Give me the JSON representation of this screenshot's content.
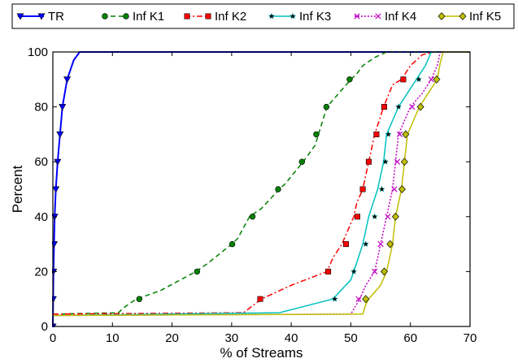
{
  "chart_data": {
    "type": "line",
    "title": "",
    "xlabel": "% of Streams",
    "ylabel": "Percent",
    "xlim": [
      0,
      70
    ],
    "ylim": [
      0,
      100
    ],
    "xticks": [
      0,
      10,
      20,
      30,
      40,
      50,
      60,
      70
    ],
    "yticks": [
      0,
      20,
      40,
      60,
      80,
      100
    ],
    "grid": false,
    "legend_placement": "top, above plot",
    "series": [
      {
        "name": "TR",
        "color": "#0000ff",
        "linestyle": "solid",
        "marker": "triangle-down",
        "points": [
          [
            0,
            0
          ],
          [
            0.05,
            10
          ],
          [
            0.1,
            20
          ],
          [
            0.2,
            30
          ],
          [
            0.3,
            40
          ],
          [
            0.5,
            50
          ],
          [
            0.8,
            60
          ],
          [
            1.2,
            70
          ],
          [
            1.6,
            80
          ],
          [
            2.4,
            90
          ],
          [
            3.5,
            97
          ],
          [
            4.5,
            100
          ],
          [
            70,
            100
          ]
        ],
        "marker_points": [
          [
            0,
            0
          ],
          [
            0.05,
            10
          ],
          [
            0.1,
            20
          ],
          [
            0.2,
            30
          ],
          [
            0.3,
            40
          ],
          [
            0.5,
            50
          ],
          [
            0.8,
            60
          ],
          [
            1.2,
            70
          ],
          [
            1.6,
            80
          ],
          [
            2.4,
            90
          ]
        ]
      },
      {
        "name": "Inf K1",
        "color": "#008000",
        "linestyle": "dashed",
        "marker": "circle",
        "points": [
          [
            0,
            4.5
          ],
          [
            11,
            5
          ],
          [
            12,
            7
          ],
          [
            14,
            10
          ],
          [
            18,
            13
          ],
          [
            24,
            20
          ],
          [
            26,
            23
          ],
          [
            30,
            30
          ],
          [
            31,
            32
          ],
          [
            33,
            40
          ],
          [
            35,
            43
          ],
          [
            38,
            50
          ],
          [
            39,
            52
          ],
          [
            42,
            60
          ],
          [
            44,
            66
          ],
          [
            46,
            80
          ],
          [
            48,
            85
          ],
          [
            50,
            90
          ],
          [
            51,
            92
          ],
          [
            52,
            95
          ],
          [
            54,
            98
          ],
          [
            56,
            100
          ],
          [
            70,
            100
          ]
        ],
        "marker_points": [
          [
            14.5,
            10
          ],
          [
            24.2,
            20
          ],
          [
            30.1,
            30
          ],
          [
            33.5,
            40
          ],
          [
            37.8,
            50
          ],
          [
            41.8,
            60
          ],
          [
            44.2,
            70
          ],
          [
            45.9,
            80
          ],
          [
            49.8,
            90
          ]
        ]
      },
      {
        "name": "Inf K2",
        "color": "#ff0000",
        "linestyle": "dashdot",
        "marker": "square",
        "points": [
          [
            0,
            4.5
          ],
          [
            32,
            5
          ],
          [
            35,
            10
          ],
          [
            40,
            15
          ],
          [
            46,
            20
          ],
          [
            47,
            25
          ],
          [
            48.5,
            30
          ],
          [
            49.5,
            35
          ],
          [
            50.5,
            40
          ],
          [
            51,
            45
          ],
          [
            52,
            50
          ],
          [
            53,
            60
          ],
          [
            54,
            70
          ],
          [
            55.5,
            80
          ],
          [
            57,
            88
          ],
          [
            58.5,
            90
          ],
          [
            60,
            95
          ],
          [
            62,
            99
          ],
          [
            64,
            100
          ],
          [
            70,
            100
          ]
        ],
        "marker_points": [
          [
            34.8,
            10
          ],
          [
            46.2,
            20
          ],
          [
            49.2,
            30
          ],
          [
            51.1,
            40
          ],
          [
            52,
            50
          ],
          [
            53,
            60
          ],
          [
            54.3,
            70
          ],
          [
            55.6,
            80
          ],
          [
            58.8,
            90
          ]
        ]
      },
      {
        "name": "Inf K3",
        "color": "#00c0c0",
        "linestyle": "solid",
        "marker": "star",
        "points": [
          [
            0,
            4
          ],
          [
            38,
            5
          ],
          [
            47,
            10
          ],
          [
            50,
            17
          ],
          [
            50.5,
            20
          ],
          [
            52,
            30
          ],
          [
            53,
            40
          ],
          [
            54.5,
            50
          ],
          [
            55.5,
            60
          ],
          [
            56,
            70
          ],
          [
            57,
            75
          ],
          [
            58,
            80
          ],
          [
            59.5,
            85
          ],
          [
            61,
            90
          ],
          [
            62.5,
            95
          ],
          [
            63.5,
            100
          ],
          [
            70,
            100
          ]
        ],
        "marker_points": [
          [
            47.3,
            10
          ],
          [
            50.5,
            20
          ],
          [
            52.5,
            30
          ],
          [
            54,
            40
          ],
          [
            55.2,
            50
          ],
          [
            55.8,
            60
          ],
          [
            56.3,
            70
          ],
          [
            58,
            80
          ],
          [
            61.4,
            90
          ]
        ]
      },
      {
        "name": "Inf K4",
        "color": "#c000c0",
        "linestyle": "dotted",
        "marker": "x",
        "points": [
          [
            0,
            4
          ],
          [
            50,
            4.5
          ],
          [
            51.5,
            10
          ],
          [
            52.5,
            15
          ],
          [
            54,
            20
          ],
          [
            55,
            30
          ],
          [
            56,
            40
          ],
          [
            57,
            50
          ],
          [
            57.5,
            60
          ],
          [
            58,
            70
          ],
          [
            59,
            75
          ],
          [
            60,
            80
          ],
          [
            62,
            85
          ],
          [
            63.5,
            90
          ],
          [
            64.5,
            95
          ],
          [
            65,
            100
          ],
          [
            70,
            100
          ]
        ],
        "marker_points": [
          [
            51.3,
            10
          ],
          [
            54,
            20
          ],
          [
            55,
            30
          ],
          [
            56.2,
            40
          ],
          [
            57.3,
            50
          ],
          [
            57.8,
            60
          ],
          [
            58.2,
            70
          ],
          [
            60.3,
            80
          ],
          [
            63.5,
            90
          ]
        ]
      },
      {
        "name": "Inf K5",
        "color": "#bfbf00",
        "linestyle": "solid",
        "marker": "diamond",
        "points": [
          [
            0,
            4
          ],
          [
            52,
            4.5
          ],
          [
            52.5,
            8
          ],
          [
            53,
            10
          ],
          [
            55,
            15
          ],
          [
            56,
            20
          ],
          [
            57,
            30
          ],
          [
            57.5,
            40
          ],
          [
            58.5,
            50
          ],
          [
            59,
            60
          ],
          [
            59.5,
            70
          ],
          [
            60.5,
            75
          ],
          [
            61.5,
            80
          ],
          [
            63,
            85
          ],
          [
            64.5,
            90
          ],
          [
            65,
            96
          ],
          [
            65.5,
            100
          ],
          [
            70,
            100
          ]
        ],
        "marker_points": [
          [
            52.5,
            10
          ],
          [
            55.6,
            20
          ],
          [
            56.6,
            30
          ],
          [
            57.5,
            40
          ],
          [
            58.6,
            50
          ],
          [
            59,
            60
          ],
          [
            59.2,
            70
          ],
          [
            61.7,
            80
          ],
          [
            64.4,
            90
          ]
        ]
      }
    ]
  }
}
